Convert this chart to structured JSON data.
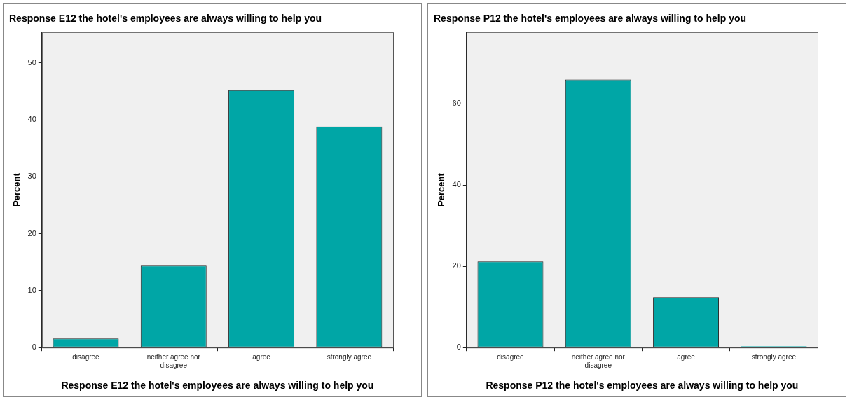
{
  "chart_data": [
    {
      "type": "bar",
      "title": "Response E12 the hotel's employees are always willing to help you",
      "xlabel": "Response E12 the hotel's employees are always willing to help you",
      "ylabel": "Percent",
      "categories": [
        "disagree",
        "neither agree nor disagree",
        "agree",
        "strongly agree"
      ],
      "values": [
        1.6,
        14.4,
        45.2,
        38.8
      ],
      "color": "#00a6a6",
      "ylim": [
        0,
        55.4
      ],
      "yticks": [
        0,
        10,
        20,
        30,
        40,
        50
      ],
      "grid": false,
      "legend": false
    },
    {
      "type": "bar",
      "title": "Response P12 the hotel's employees are always willing to help you",
      "xlabel": "Response P12 the hotel's employees are always willing to help you",
      "ylabel": "Percent",
      "categories": [
        "disagree",
        "neither agree nor disagree",
        "agree",
        "strongly agree"
      ],
      "values": [
        21.2,
        66.0,
        12.4,
        0.3
      ],
      "color": "#00a6a6",
      "ylim": [
        0,
        77.7
      ],
      "yticks": [
        0,
        20,
        40,
        60
      ],
      "grid": false,
      "legend": false
    }
  ]
}
